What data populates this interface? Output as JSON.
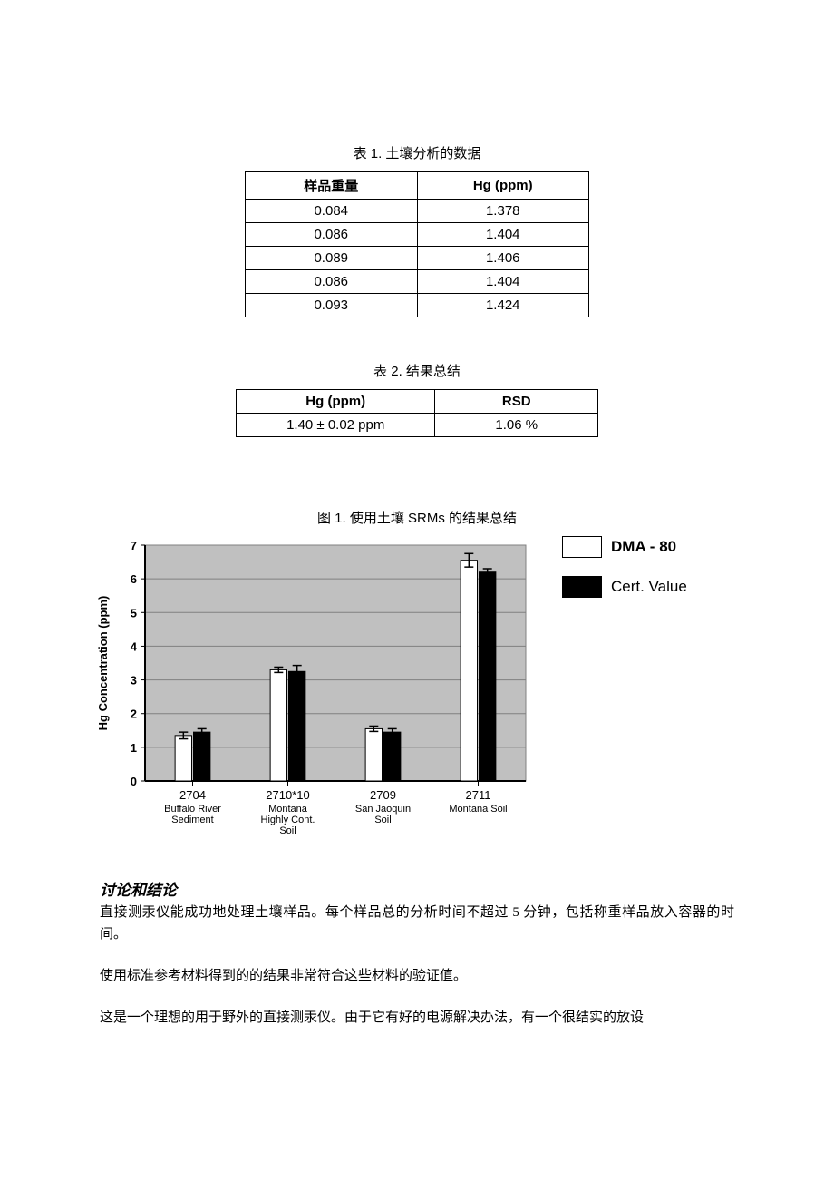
{
  "table1": {
    "caption": "表 1. 土壤分析的数据",
    "headers": [
      "样品重量",
      "Hg (ppm)"
    ],
    "rows": [
      [
        "0.084",
        "1.378"
      ],
      [
        "0.086",
        "1.404"
      ],
      [
        "0.089",
        "1.406"
      ],
      [
        "0.086",
        "1.404"
      ],
      [
        "0.093",
        "1.424"
      ]
    ]
  },
  "table2": {
    "caption": "表 2. 结果总结",
    "headers": [
      "Hg (ppm)",
      "RSD"
    ],
    "rows": [
      [
        "1.40 ± 0.02 ppm",
        "1.06 %"
      ]
    ]
  },
  "figure1": {
    "caption": "图 1. 使用土壤 SRMs 的结果总结",
    "chart": {
      "type": "bar",
      "ylabel": "Hg Concentration (ppm)",
      "label_fontsize": 13,
      "ylim": [
        0,
        7
      ],
      "ytick_step": 1,
      "background_color": "#c0c0c0",
      "grid_color": "#808080",
      "plot_border_color": "#808080",
      "axis_color": "#000000",
      "tick_font_size": 13,
      "categories": [
        "2704",
        "2710*10",
        "2709",
        "2711"
      ],
      "category_sub": [
        "Buffalo River Sediment",
        "Montana Highly Cont. Soil",
        "San Jaoquin Soil",
        "Montana Soil"
      ],
      "category_font_size": 13,
      "category_sub_font_size": 11,
      "series": [
        {
          "name": "DMA - 80",
          "color": "#ffffff",
          "border": "#000000",
          "values": [
            1.35,
            3.3,
            1.55,
            6.55
          ],
          "err": [
            0.1,
            0.08,
            0.08,
            0.2
          ]
        },
        {
          "name": "Cert. Value",
          "color": "#000000",
          "border": "#000000",
          "values": [
            1.45,
            3.25,
            1.45,
            6.2
          ],
          "err": [
            0.1,
            0.18,
            0.1,
            0.1
          ]
        }
      ],
      "bar_width": 0.35,
      "group_gap": 0.3,
      "legend": {
        "position": "right",
        "font_size": 17,
        "font_weight_first": "bold"
      }
    }
  },
  "discussion": {
    "heading": "讨论和结论",
    "p1": "直接测汞仪能成功地处理土壤样品。每个样品总的分析时间不超过 5 分钟，包括称重样品放入容器的时间。",
    "p2": "使用标准参考材料得到的的结果非常符合这些材料的验证值。",
    "p3": "这是一个理想的用于野外的直接测汞仪。由于它有好的电源解决办法，有一个很结实的放设"
  }
}
